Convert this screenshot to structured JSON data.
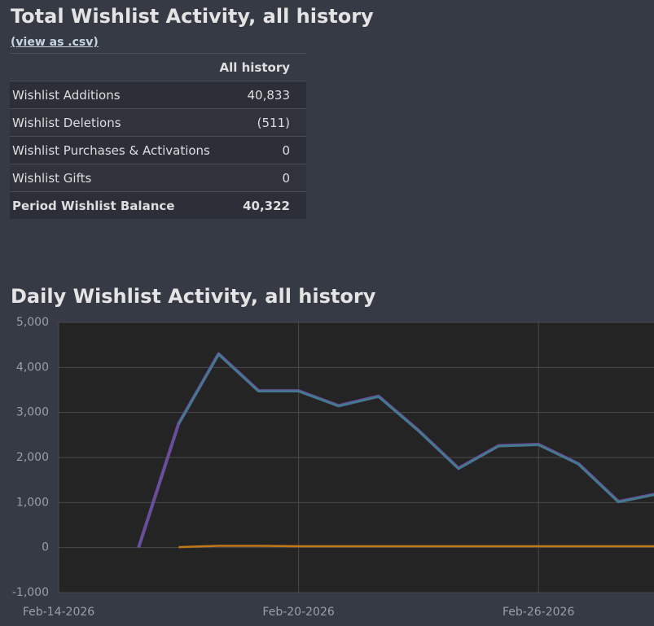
{
  "summary": {
    "title": "Total Wishlist Activity, all history",
    "link": "(view as .csv)",
    "table": {
      "header": "All history",
      "rows": [
        [
          "Wishlist Additions",
          "40,833"
        ],
        [
          "Wishlist Deletions",
          "(511)"
        ],
        [
          "Wishlist Purchases & Activations",
          "0"
        ],
        [
          "Wishlist Gifts",
          "0"
        ],
        [
          "Period Wishlist Balance",
          "40,322"
        ]
      ]
    }
  },
  "chart_data": {
    "type": "line",
    "title": "Daily Wishlist Activity, all history",
    "x": [
      "Feb-16-2026",
      "Feb-17-2026",
      "Feb-18-2026",
      "Feb-19-2026",
      "Feb-20-2026",
      "Feb-21-2026",
      "Feb-22-2026",
      "Feb-23-2026",
      "Feb-24-2026",
      "Feb-25-2026",
      "Feb-26-2026",
      "Feb-27-2026",
      "Feb-28-2026",
      "Mar-01-2026"
    ],
    "series": [
      {
        "color": "#6b4d9e",
        "values": [
          0,
          2750,
          4300,
          3480,
          3480,
          3150,
          3360,
          2600,
          1760,
          2260,
          2290,
          1860,
          1020,
          1200
        ]
      },
      {
        "color": "#3e7d8a",
        "values": [
          null,
          2740,
          4290,
          3470,
          3470,
          3140,
          3350,
          2590,
          1750,
          2250,
          2280,
          1850,
          1010,
          1190
        ]
      },
      {
        "color": "#c07818",
        "values": [
          null,
          10,
          40,
          40,
          30,
          30,
          30,
          30,
          30,
          30,
          30,
          30,
          30,
          30
        ]
      }
    ],
    "xlim": [
      "Feb-14-2026",
      "Mar-01-2026"
    ],
    "xticks": [
      "Feb-14-2026",
      "Feb-20-2026",
      "Feb-26-2026"
    ],
    "ylim": [
      -1000,
      5000
    ],
    "yticks": [
      {
        "value": -1000,
        "label": "-1,000"
      },
      0,
      {
        "value": 1000,
        "label": "1,000"
      },
      {
        "value": 2000,
        "label": "2,000"
      },
      {
        "value": 3000,
        "label": "3,000"
      },
      {
        "value": 4000,
        "label": "4,000"
      },
      {
        "value": 5000,
        "label": "5,000"
      }
    ],
    "grid": true
  }
}
